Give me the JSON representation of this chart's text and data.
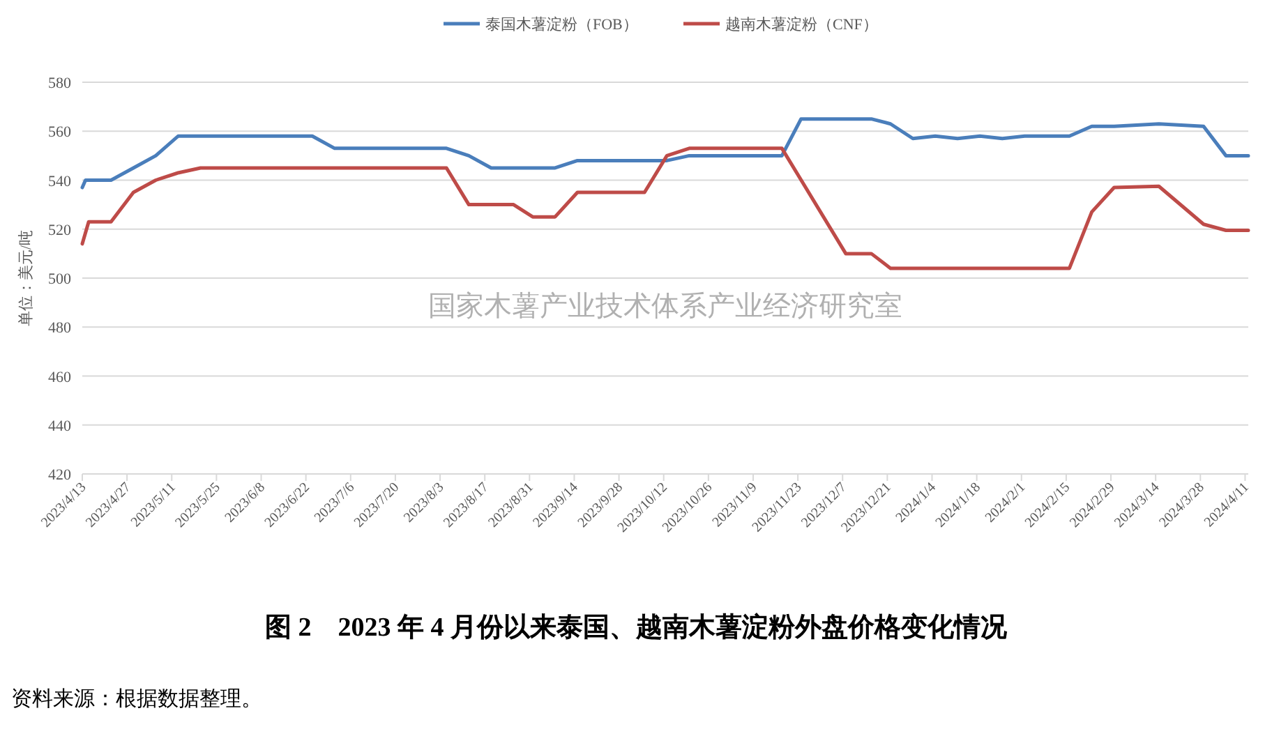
{
  "chart_data": {
    "type": "line",
    "title": "图 2　2023 年 4 月份以来泰国、越南木薯淀粉外盘价格变化情况",
    "ylabel": "单位：美元/吨",
    "annotations": [
      "国家木薯产业技术体系产业经济研究室",
      "资料来源：根据数据整理。"
    ],
    "legend": "top",
    "grid": "y",
    "xlim": [
      "2023-04-13",
      "2024-04-12"
    ],
    "ylim": [
      420,
      580
    ],
    "yticks": [
      420,
      440,
      460,
      480,
      500,
      520,
      540,
      560,
      580
    ],
    "xticks": [
      {
        "value": "2023-04-13",
        "label": "2023/4/13"
      },
      {
        "value": "2023-04-27",
        "label": "2023/4/27"
      },
      {
        "value": "2023-05-11",
        "label": "2023/5/11"
      },
      {
        "value": "2023-05-25",
        "label": "2023/5/25"
      },
      {
        "value": "2023-06-08",
        "label": "2023/6/8"
      },
      {
        "value": "2023-06-22",
        "label": "2023/6/22"
      },
      {
        "value": "2023-07-06",
        "label": "2023/7/6"
      },
      {
        "value": "2023-07-20",
        "label": "2023/7/20"
      },
      {
        "value": "2023-08-03",
        "label": "2023/8/3"
      },
      {
        "value": "2023-08-17",
        "label": "2023/8/17"
      },
      {
        "value": "2023-08-31",
        "label": "2023/8/31"
      },
      {
        "value": "2023-09-14",
        "label": "2023/9/14"
      },
      {
        "value": "2023-09-28",
        "label": "2023/9/28"
      },
      {
        "value": "2023-10-12",
        "label": "2023/10/12"
      },
      {
        "value": "2023-10-26",
        "label": "2023/10/26"
      },
      {
        "value": "2023-11-09",
        "label": "2023/11/9"
      },
      {
        "value": "2023-11-23",
        "label": "2023/11/23"
      },
      {
        "value": "2023-12-07",
        "label": "2023/12/7"
      },
      {
        "value": "2023-12-21",
        "label": "2023/12/21"
      },
      {
        "value": "2024-01-04",
        "label": "2024/1/4"
      },
      {
        "value": "2024-01-18",
        "label": "2024/1/18"
      },
      {
        "value": "2024-02-01",
        "label": "2024/2/1"
      },
      {
        "value": "2024-02-15",
        "label": "2024/2/15"
      },
      {
        "value": "2024-02-29",
        "label": "2024/2/29"
      },
      {
        "value": "2024-03-14",
        "label": "2024/3/14"
      },
      {
        "value": "2024-03-28",
        "label": "2024/3/28"
      },
      {
        "value": "2024-04-11",
        "label": "2024/4/11"
      }
    ],
    "series": [
      {
        "name": "泰国木薯淀粉（FOB）",
        "color": "#4a7ebb",
        "x": [
          "2023-04-13",
          "2023-04-14",
          "2023-04-22",
          "2023-04-29",
          "2023-05-06",
          "2023-05-13",
          "2023-06-24",
          "2023-07-01",
          "2023-08-05",
          "2023-08-12",
          "2023-08-19",
          "2023-09-08",
          "2023-09-15",
          "2023-10-13",
          "2023-10-20",
          "2023-11-18",
          "2023-11-24",
          "2023-12-16",
          "2023-12-22",
          "2023-12-29",
          "2024-01-05",
          "2024-01-12",
          "2024-01-19",
          "2024-01-26",
          "2024-02-02",
          "2024-02-09",
          "2024-02-16",
          "2024-02-23",
          "2024-03-01",
          "2024-03-15",
          "2024-03-29",
          "2024-04-05",
          "2024-04-12"
        ],
        "values": [
          537,
          540,
          540,
          545,
          550,
          558,
          558,
          553,
          553,
          550,
          545,
          545,
          548,
          548,
          550,
          550,
          565,
          565,
          563,
          557,
          558,
          557,
          558,
          557,
          558,
          558,
          558,
          562,
          562,
          563,
          562,
          550,
          550
        ]
      },
      {
        "name": "越南木薯淀粉（CNF）",
        "color": "#be4b48",
        "x": [
          "2023-04-13",
          "2023-04-15",
          "2023-04-22",
          "2023-04-29",
          "2023-05-06",
          "2023-05-13",
          "2023-05-20",
          "2023-08-05",
          "2023-08-12",
          "2023-08-26",
          "2023-09-01",
          "2023-09-08",
          "2023-09-15",
          "2023-10-06",
          "2023-10-13",
          "2023-10-20",
          "2023-11-18",
          "2023-12-08",
          "2023-12-16",
          "2023-12-22",
          "2024-02-16",
          "2024-02-23",
          "2024-03-01",
          "2024-03-15",
          "2024-03-29",
          "2024-04-05",
          "2024-04-12"
        ],
        "values": [
          514,
          523,
          523,
          535,
          540,
          543,
          545,
          545,
          530,
          530,
          525,
          525,
          535,
          535,
          550,
          553,
          553,
          510,
          510,
          504,
          504,
          527,
          537,
          537.5,
          522,
          519.5,
          519.5
        ]
      }
    ]
  }
}
